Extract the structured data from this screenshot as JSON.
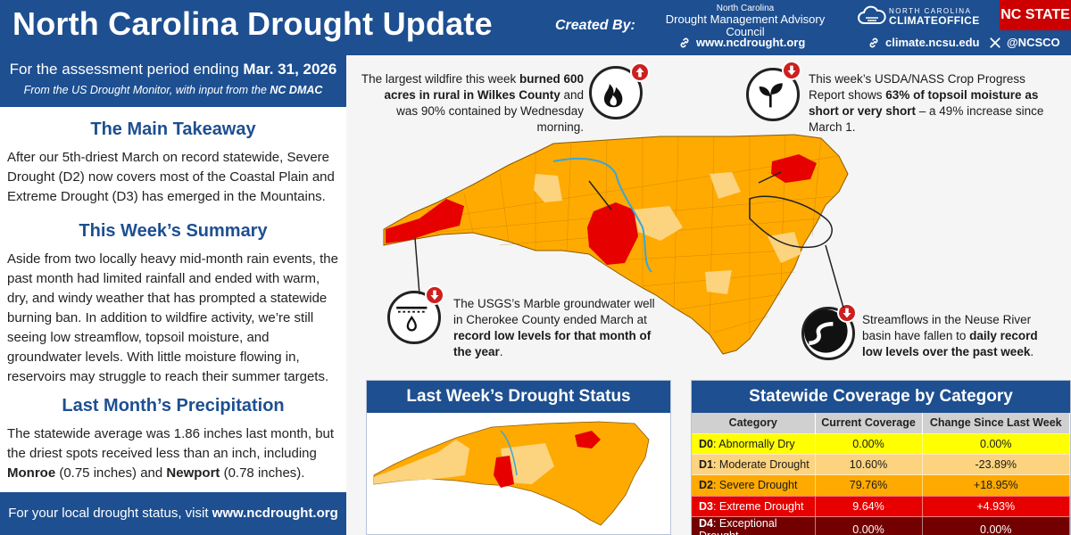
{
  "header": {
    "title": "North Carolina Drought Update",
    "created_by": "Created By:",
    "dmac_nc": "North Carolina",
    "dmac_council": "Drought Management Advisory Council",
    "dmac_url": "www.ncdrought.org",
    "climate_small": "NORTH CAROLINA",
    "climate_big": "CLIMATEOFFICE",
    "climate_url": "climate.ncsu.edu",
    "x_handle": "@NCSCO",
    "ncstate": "NC STATE"
  },
  "period": {
    "prefix": "For the assessment period ending ",
    "date": "Mar. 31, 2026",
    "source_prefix": "From the US Drought Monitor, with input from the ",
    "source_bold": "NC DMAC"
  },
  "takeaway": {
    "title": "The Main Takeaway",
    "body": "After our 5th-driest March on record statewide, Severe Drought (D2) now covers most of the Coastal Plain and Extreme Drought (D3) has emerged in the Mountains."
  },
  "summary": {
    "title": "This Week’s Summary",
    "body": "Aside from two locally heavy mid-month rain events, the past month had limited rainfall and ended with warm, dry, and windy weather that has prompted a statewide burning ban. In addition to wildfire activity, we’re still seeing low streamflow, topsoil moisture, and groundwater levels. With little moisture flowing in, reservoirs may struggle to reach their summer targets."
  },
  "precip": {
    "title": "Last Month’s Precipitation",
    "body1": "The statewide average was 1.86 inches last month, but the driest spots received less than an inch, including ",
    "place1": "Monroe",
    "val1": " (0.75 inches) and ",
    "place2": "Newport",
    "val2": " (0.78 inches)."
  },
  "footer": {
    "prefix": "For your local drought status, visit ",
    "url": "www.ncdrought.org"
  },
  "callouts": {
    "wildfire": {
      "t1": "The largest wildfire this week ",
      "b1": "burned 600 acres in rural in Wilkes County",
      "t2": " and was 90% contained by Wednesday morning.",
      "icon": "fire-icon"
    },
    "crop": {
      "t1": "This week’s USDA/NASS Crop Progress Report shows ",
      "b1": "63% of topsoil moisture as short or very short",
      "t2": " – a 49% increase since March 1.",
      "icon": "sprout-icon"
    },
    "groundwater": {
      "t1": "The USGS’s Marble groundwater well in Cherokee County ended March at ",
      "b1": "record low levels for that month of the year",
      "t2": ".",
      "icon": "well-icon"
    },
    "streamflow": {
      "t1": "Streamflows in the Neuse River basin have fallen to ",
      "b1": "daily record low levels over the past week",
      "t2": ".",
      "icon": "river-icon"
    }
  },
  "last_week": {
    "title": "Last Week’s Drought Status"
  },
  "coverage": {
    "title": "Statewide Coverage by Category",
    "columns": [
      "Category",
      "Current Coverage",
      "Change Since Last Week"
    ],
    "rows": [
      {
        "code": "D0",
        "name": ": Abnormally Dry",
        "current": "0.00%",
        "change": "0.00%",
        "color": "#ffff00",
        "text_color": "#1a1a1a"
      },
      {
        "code": "D1",
        "name": ": Moderate Drought",
        "current": "10.60%",
        "change": "-23.89%",
        "color": "#fcd37f",
        "text_color": "#1a1a1a"
      },
      {
        "code": "D2",
        "name": ": Severe Drought",
        "current": "79.76%",
        "change": "+18.95%",
        "color": "#ffaa00",
        "text_color": "#1a1a1a"
      },
      {
        "code": "D3",
        "name": ": Extreme Drought",
        "current": "9.64%",
        "change": "+4.93%",
        "color": "#e60000",
        "text_color": "#ffffff"
      },
      {
        "code": "D4",
        "name": ": Exceptional Drought",
        "current": "0.00%",
        "change": "0.00%",
        "color": "#730000",
        "text_color": "#ffffff"
      }
    ]
  },
  "colors": {
    "brand_blue": "#1d4f91",
    "ncstate_red": "#cc0000",
    "d1": "#fcd37f",
    "d2": "#ffaa00",
    "d3": "#e60000"
  }
}
